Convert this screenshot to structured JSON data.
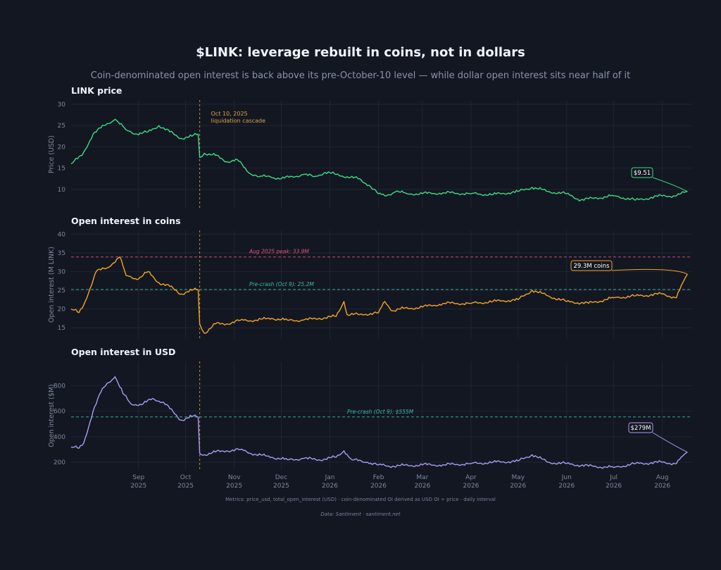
{
  "title": "$LINK: leverage rebuilt in coins, not in dollars",
  "subtitle": "Coin-denominated open interest is back above its pre-October-10 level — while dollar open interest sits near half of it",
  "footnote": "Metrics: price_usd, total_open_interest (USD) · coin-denominated OI derived as USD OI ÷ price · daily interval",
  "source": "Data: Santiment · santiment.net",
  "colors": {
    "background": "#131722",
    "grid": "#1f2533",
    "price_line": "#3ddc84",
    "coins_line": "#f5a623",
    "usd_line": "#a99cf0",
    "event_line": "#d9a441",
    "peak_line": "#e0557a",
    "precrash_line": "#3fb6a3"
  },
  "event": {
    "date": "2025-10-10",
    "label_line1": "Oct 10, 2025",
    "label_line2": "liquidation cascade"
  },
  "x_axis": {
    "range": [
      "2025-07-20",
      "2026-08-20"
    ],
    "ticks": [
      {
        "date": "2025-09-01",
        "month": "Sep",
        "year": "2025"
      },
      {
        "date": "2025-10-01",
        "month": "Oct",
        "year": "2025"
      },
      {
        "date": "2025-11-01",
        "month": "Nov",
        "year": "2025"
      },
      {
        "date": "2025-12-01",
        "month": "Dec",
        "year": "2025"
      },
      {
        "date": "2026-01-01",
        "month": "Jan",
        "year": "2026"
      },
      {
        "date": "2026-02-01",
        "month": "Feb",
        "year": "2026"
      },
      {
        "date": "2026-03-01",
        "month": "Mar",
        "year": "2026"
      },
      {
        "date": "2026-04-01",
        "month": "Apr",
        "year": "2026"
      },
      {
        "date": "2026-05-01",
        "month": "May",
        "year": "2026"
      },
      {
        "date": "2026-06-01",
        "month": "Jun",
        "year": "2026"
      },
      {
        "date": "2026-07-01",
        "month": "Jul",
        "year": "2026"
      },
      {
        "date": "2026-08-01",
        "month": "Aug",
        "year": "2026"
      }
    ]
  },
  "chart_data": [
    {
      "type": "line",
      "title": "LINK price",
      "ylabel": "Price (USD)",
      "ylim": [
        5.5,
        31
      ],
      "yticks": [
        10,
        15,
        20,
        25,
        30
      ],
      "grid": true,
      "end_label": "$9.51",
      "series": [
        {
          "x": [
            "2025-07-20",
            "2025-07-27",
            "2025-08-03",
            "2025-08-10",
            "2025-08-17",
            "2025-08-24",
            "2025-08-31",
            "2025-09-07",
            "2025-09-14",
            "2025-09-21",
            "2025-09-28",
            "2025-10-05",
            "2025-10-09",
            "2025-10-10",
            "2025-10-13",
            "2025-10-20",
            "2025-10-27",
            "2025-11-03",
            "2025-11-10",
            "2025-11-17",
            "2025-11-24",
            "2025-12-01",
            "2025-12-08",
            "2025-12-15",
            "2025-12-22",
            "2025-12-29",
            "2026-01-05",
            "2026-01-12",
            "2026-01-19",
            "2026-01-26",
            "2026-02-01",
            "2026-02-05",
            "2026-02-12",
            "2026-02-19",
            "2026-03-01",
            "2026-03-15",
            "2026-04-01",
            "2026-04-15",
            "2026-05-01",
            "2026-05-10",
            "2026-05-20",
            "2026-06-01",
            "2026-06-10",
            "2026-06-20",
            "2026-07-01",
            "2026-07-15",
            "2026-08-01",
            "2026-08-10",
            "2026-08-17"
          ],
          "y": [
            16,
            18,
            23,
            25,
            26.5,
            24,
            23,
            23.5,
            25,
            23.5,
            22,
            22.5,
            23,
            17.5,
            18.5,
            18,
            16.5,
            17,
            14,
            13,
            13,
            12.5,
            13,
            13.5,
            13,
            14,
            13.5,
            13,
            12.5,
            11,
            9,
            8.5,
            9.5,
            9,
            9,
            9.2,
            9,
            8.8,
            9.5,
            10.5,
            9.5,
            9,
            7.5,
            8,
            8.5,
            7.5,
            8.5,
            8.5,
            9.51
          ]
        }
      ]
    },
    {
      "type": "line",
      "title": "Open interest in coins",
      "ylabel": "Open interest (M LINK)",
      "ylim": [
        12,
        41
      ],
      "yticks": [
        15,
        20,
        25,
        30,
        35,
        40
      ],
      "grid": true,
      "end_label": "29.3M coins",
      "reference_lines": [
        {
          "value": 33.9,
          "label": "Aug 2025 peak: 33.9M",
          "color": "#e0557a"
        },
        {
          "value": 25.2,
          "label": "Pre-crash (Oct 9): 25.2M",
          "color": "#3fb6a3"
        }
      ],
      "series": [
        {
          "x": [
            "2025-07-20",
            "2025-07-25",
            "2025-07-28",
            "2025-08-05",
            "2025-08-12",
            "2025-08-20",
            "2025-08-24",
            "2025-09-01",
            "2025-09-07",
            "2025-09-14",
            "2025-09-21",
            "2025-09-28",
            "2025-10-05",
            "2025-10-09",
            "2025-10-10",
            "2025-10-13",
            "2025-10-20",
            "2025-10-27",
            "2025-11-05",
            "2025-11-15",
            "2025-11-25",
            "2025-12-05",
            "2025-12-15",
            "2025-12-25",
            "2026-01-05",
            "2026-01-10",
            "2026-01-12",
            "2026-01-20",
            "2026-02-01",
            "2026-02-05",
            "2026-02-10",
            "2026-02-15",
            "2026-03-01",
            "2026-03-15",
            "2026-04-01",
            "2026-04-15",
            "2026-05-01",
            "2026-05-10",
            "2026-05-20",
            "2026-06-01",
            "2026-06-15",
            "2026-07-01",
            "2026-07-15",
            "2026-08-01",
            "2026-08-10",
            "2026-08-14",
            "2026-08-17"
          ],
          "y": [
            20,
            19,
            21,
            30,
            31,
            33.9,
            29,
            28,
            30,
            27,
            26,
            24,
            25,
            25.2,
            16,
            13.5,
            16,
            16,
            17,
            17,
            17.5,
            17,
            17,
            17.5,
            18,
            22,
            18.5,
            18.5,
            19,
            22,
            19.5,
            20,
            20.5,
            21.5,
            21.5,
            22,
            22.5,
            25,
            23.5,
            22,
            21.5,
            23,
            23.5,
            24,
            23,
            27,
            29.3
          ]
        }
      ]
    },
    {
      "type": "line",
      "title": "Open interest in USD",
      "ylabel": "Open interest ($M)",
      "ylim": [
        140,
        990
      ],
      "yticks": [
        200,
        400,
        600,
        800
      ],
      "grid": true,
      "end_label": "$279M",
      "reference_lines": [
        {
          "value": 555,
          "label": "Pre-crash (Oct 9): $555M",
          "color": "#3fb6a3"
        }
      ],
      "series": [
        {
          "x": [
            "2025-07-20",
            "2025-07-25",
            "2025-07-28",
            "2025-08-03",
            "2025-08-08",
            "2025-08-12",
            "2025-08-17",
            "2025-08-22",
            "2025-08-27",
            "2025-09-03",
            "2025-09-10",
            "2025-09-17",
            "2025-09-24",
            "2025-09-28",
            "2025-10-05",
            "2025-10-09",
            "2025-10-10",
            "2025-10-13",
            "2025-10-20",
            "2025-10-27",
            "2025-11-05",
            "2025-11-15",
            "2025-11-25",
            "2025-12-05",
            "2025-12-15",
            "2025-12-25",
            "2026-01-05",
            "2026-01-10",
            "2026-01-15",
            "2026-01-25",
            "2026-02-01",
            "2026-02-10",
            "2026-03-01",
            "2026-03-15",
            "2026-04-01",
            "2026-04-15",
            "2026-05-01",
            "2026-05-10",
            "2026-05-20",
            "2026-06-01",
            "2026-06-15",
            "2026-07-01",
            "2026-07-15",
            "2026-08-01",
            "2026-08-10",
            "2026-08-14",
            "2026-08-17"
          ],
          "y": [
            320,
            310,
            350,
            600,
            750,
            820,
            870,
            740,
            660,
            650,
            700,
            670,
            580,
            530,
            560,
            555,
            270,
            260,
            280,
            290,
            300,
            260,
            240,
            220,
            230,
            220,
            240,
            290,
            220,
            200,
            180,
            170,
            180,
            180,
            190,
            200,
            210,
            260,
            200,
            190,
            170,
            160,
            190,
            200,
            190,
            250,
            279
          ]
        }
      ]
    }
  ]
}
